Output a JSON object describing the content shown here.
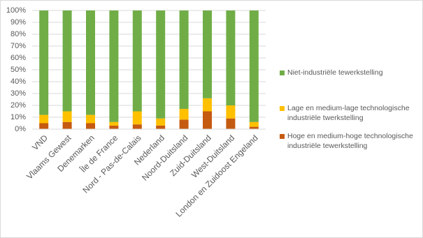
{
  "chart_data": {
    "type": "stacked_bar",
    "categories": [
      "VND",
      "Vlaams Gewest",
      "Denemarken",
      "Île de France",
      "Nord - Pas-de-Calais",
      "Nederland",
      "Noord-Duitsland",
      "Zuid-Duitsland",
      "West-Duitsland",
      "London en Zuidoost Engeland"
    ],
    "series": [
      {
        "name": "Hoge en medium-hoge technologische industriële tewerkstelling",
        "color": "#c55a11",
        "values": [
          5,
          6,
          5,
          3,
          4,
          3,
          8,
          15,
          9,
          2
        ]
      },
      {
        "name": "Lage en medium-lage technologische industriële twerkstelling",
        "color": "#ffc000",
        "values": [
          7,
          9,
          7,
          3,
          11,
          6,
          9,
          11,
          11,
          4
        ]
      },
      {
        "name": "Niet-industriële tewerkstelling",
        "color": "#70ad47",
        "values": [
          88,
          85,
          88,
          94,
          85,
          91,
          83,
          74,
          80,
          94
        ]
      }
    ],
    "ylim": [
      0,
      100
    ],
    "yticks": [
      {
        "value": 0,
        "label": "0%"
      },
      {
        "value": 10,
        "label": "10%"
      },
      {
        "value": 20,
        "label": "20%"
      },
      {
        "value": 30,
        "label": "30%"
      },
      {
        "value": 40,
        "label": "40%"
      },
      {
        "value": 50,
        "label": "50%"
      },
      {
        "value": 60,
        "label": "60%"
      },
      {
        "value": 70,
        "label": "70%"
      },
      {
        "value": 80,
        "label": "80%"
      },
      {
        "value": 90,
        "label": "90%"
      },
      {
        "value": 100,
        "label": "100%"
      }
    ],
    "grid": true,
    "legend": "right"
  }
}
